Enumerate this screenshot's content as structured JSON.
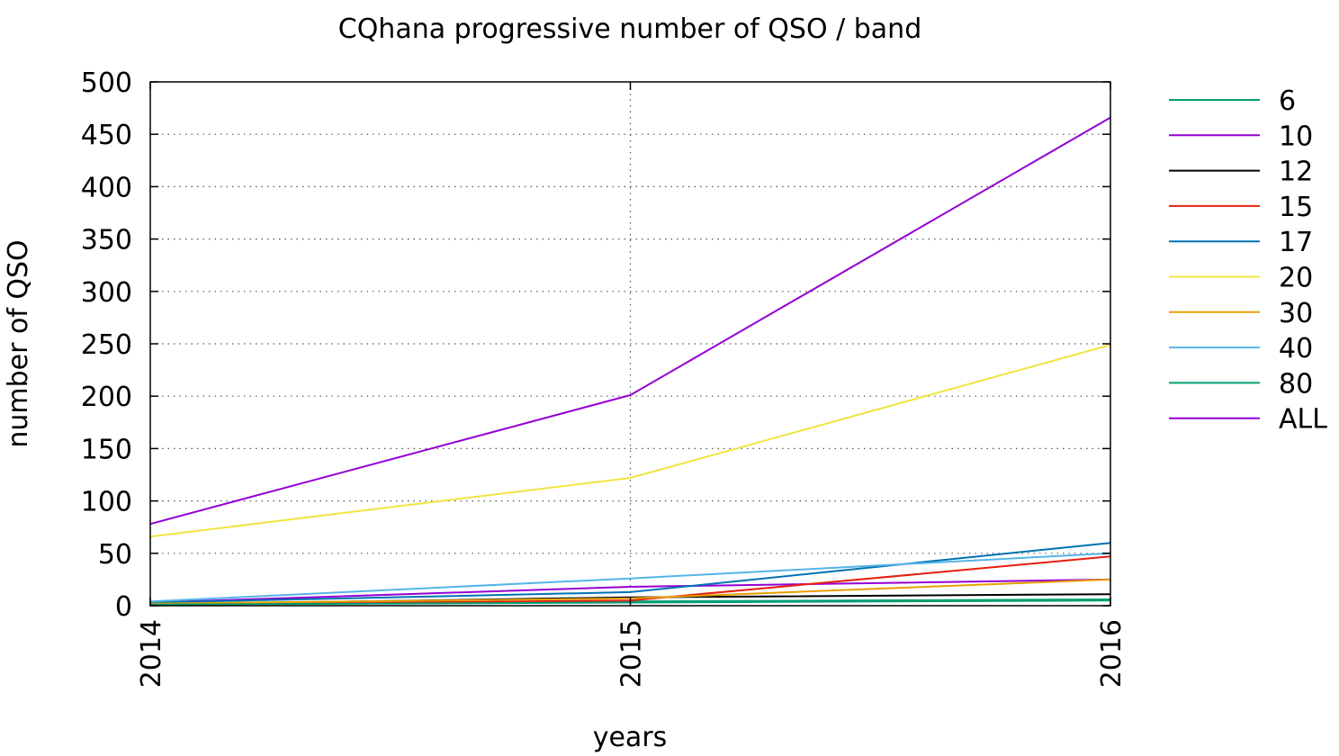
{
  "chart_data": {
    "type": "line",
    "title": "CQhana progressive number of QSO / band",
    "xlabel": "years",
    "ylabel": "number of QSO",
    "x": [
      2014,
      2015,
      2016
    ],
    "x_tick_labels": [
      "2014",
      "2015",
      "2016"
    ],
    "y_tick_labels": [
      "0",
      "50",
      "100",
      "150",
      "200",
      "250",
      "300",
      "350",
      "400",
      "450",
      "500"
    ],
    "xlim": [
      2014,
      2016
    ],
    "ylim": [
      0,
      500
    ],
    "grid": true,
    "legend_position": "outside-right",
    "series": [
      {
        "name": "6",
        "color": "#009e73",
        "values": [
          2,
          4,
          6
        ]
      },
      {
        "name": "10",
        "color": "#9400d3",
        "values": [
          3,
          18,
          25
        ]
      },
      {
        "name": "12",
        "color": "#000000",
        "values": [
          1,
          8,
          11
        ]
      },
      {
        "name": "15",
        "color": "#e51e10",
        "values": [
          1,
          5,
          47
        ]
      },
      {
        "name": "17",
        "color": "#0072b2",
        "values": [
          3,
          13,
          60
        ]
      },
      {
        "name": "20",
        "color": "#f0e442",
        "values": [
          66,
          122,
          249
        ]
      },
      {
        "name": "30",
        "color": "#e69f00",
        "values": [
          2,
          7,
          25
        ]
      },
      {
        "name": "40",
        "color": "#56b4e9",
        "values": [
          4,
          26,
          50
        ]
      },
      {
        "name": "80",
        "color": "#009e73",
        "values": [
          1,
          3,
          5
        ]
      },
      {
        "name": "ALL",
        "color": "#9400d3",
        "values": [
          78,
          201,
          466
        ]
      }
    ]
  }
}
